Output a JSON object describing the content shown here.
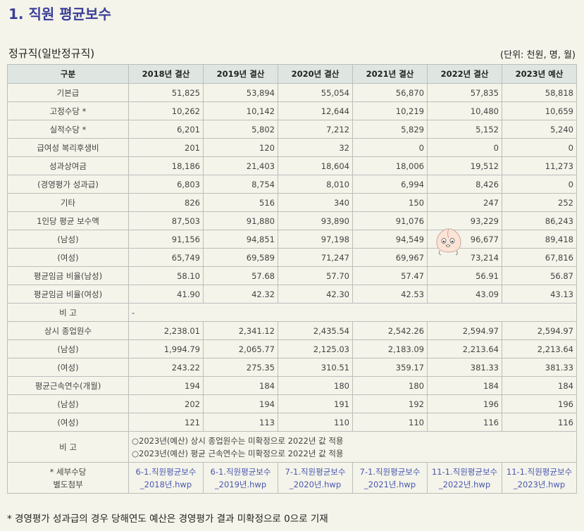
{
  "page_title": "1. 직원 평균보수",
  "section_title": "정규직(일반정규직)",
  "unit_note": "(단위: 천원, 명, 월)",
  "table": {
    "header": [
      "구분",
      "2018년 결산",
      "2019년 결산",
      "2020년 결산",
      "2021년 결산",
      "2022년 결산",
      "2023년 예산"
    ],
    "rows": [
      {
        "label": "기본급",
        "values": [
          "51,825",
          "53,894",
          "55,054",
          "56,870",
          "57,835",
          "58,818"
        ]
      },
      {
        "label": "고정수당 *",
        "values": [
          "10,262",
          "10,142",
          "12,644",
          "10,219",
          "10,480",
          "10,659"
        ]
      },
      {
        "label": "실적수당 *",
        "values": [
          "6,201",
          "5,802",
          "7,212",
          "5,829",
          "5,152",
          "5,240"
        ]
      },
      {
        "label": "급여성 복리후생비",
        "values": [
          "201",
          "120",
          "32",
          "0",
          "0",
          "0"
        ]
      },
      {
        "label": "성과상여금",
        "values": [
          "18,186",
          "21,403",
          "18,604",
          "18,006",
          "19,512",
          "11,273"
        ]
      },
      {
        "label": "(경영평가 성과급)",
        "values": [
          "6,803",
          "8,754",
          "8,010",
          "6,994",
          "8,426",
          "0"
        ]
      },
      {
        "label": "기타",
        "values": [
          "826",
          "516",
          "340",
          "150",
          "247",
          "252"
        ]
      },
      {
        "label": "1인당 평균 보수액",
        "values": [
          "87,503",
          "91,880",
          "93,890",
          "91,076",
          "93,229",
          "86,243"
        ]
      },
      {
        "label": "(남성)",
        "values": [
          "91,156",
          "94,851",
          "97,198",
          "94,549",
          "96,677",
          "89,418"
        ]
      },
      {
        "label": "(여성)",
        "values": [
          "65,749",
          "69,589",
          "71,247",
          "69,967",
          "73,214",
          "67,816"
        ]
      },
      {
        "label": "평균임금 비율(남성)",
        "values": [
          "58.10",
          "57.68",
          "57.70",
          "57.47",
          "56.91",
          "56.87"
        ]
      },
      {
        "label": "평균임금 비율(여성)",
        "values": [
          "41.90",
          "42.32",
          "42.30",
          "42.53",
          "43.09",
          "43.13"
        ]
      }
    ],
    "note1": {
      "label": "비 고",
      "text": "-"
    },
    "rows2": [
      {
        "label": "상시 종업원수",
        "values": [
          "2,238.01",
          "2,341.12",
          "2,435.54",
          "2,542.26",
          "2,594.97",
          "2,594.97"
        ]
      },
      {
        "label": "(남성)",
        "values": [
          "1,994.79",
          "2,065.77",
          "2,125.03",
          "2,183.09",
          "2,213.64",
          "2,213.64"
        ]
      },
      {
        "label": "(여성)",
        "values": [
          "243.22",
          "275.35",
          "310.51",
          "359.17",
          "381.33",
          "381.33"
        ]
      },
      {
        "label": "평균근속연수(개월)",
        "values": [
          "194",
          "184",
          "180",
          "180",
          "184",
          "184"
        ]
      },
      {
        "label": "(남성)",
        "values": [
          "202",
          "194",
          "191",
          "192",
          "196",
          "196"
        ]
      },
      {
        "label": "(여성)",
        "values": [
          "121",
          "113",
          "110",
          "110",
          "116",
          "116"
        ]
      }
    ],
    "note2": {
      "label": "비 고",
      "line1": "○2023년(예산) 상시 종업원수는 미확정으로 2022년 값 적용",
      "line2": "○2023년(예산) 평균 근속연수는 미확정으로 2022년 값 적용"
    },
    "files": {
      "label_line1": "* 세부수당",
      "label_line2": "별도첨부",
      "links": [
        {
          "line1": "6-1.직원평균보수",
          "line2": "_2018년.hwp"
        },
        {
          "line1": "6-1.직원평균보수",
          "line2": "_2019년.hwp"
        },
        {
          "line1": "7-1.직원평균보수",
          "line2": "_2020년.hwp"
        },
        {
          "line1": "7-1.직원평균보수",
          "line2": "_2021년.hwp"
        },
        {
          "line1": "11-1.직원평균보수",
          "line2": "_2022년.hwp"
        },
        {
          "line1": "11-1.직원평균보수",
          "line2": "_2023년.hwp"
        }
      ]
    }
  },
  "footnote": "* 경영평가 성과급의 경우 당해연도 예산은 경영평가 결과 미확정으로 0으로 기재",
  "colors": {
    "title": "#3b3e97",
    "header_bg": "#dfe6e2",
    "link": "#4a57b0",
    "page_bg": "#f4f4ea"
  },
  "mascot_icon": "peach-character-icon"
}
